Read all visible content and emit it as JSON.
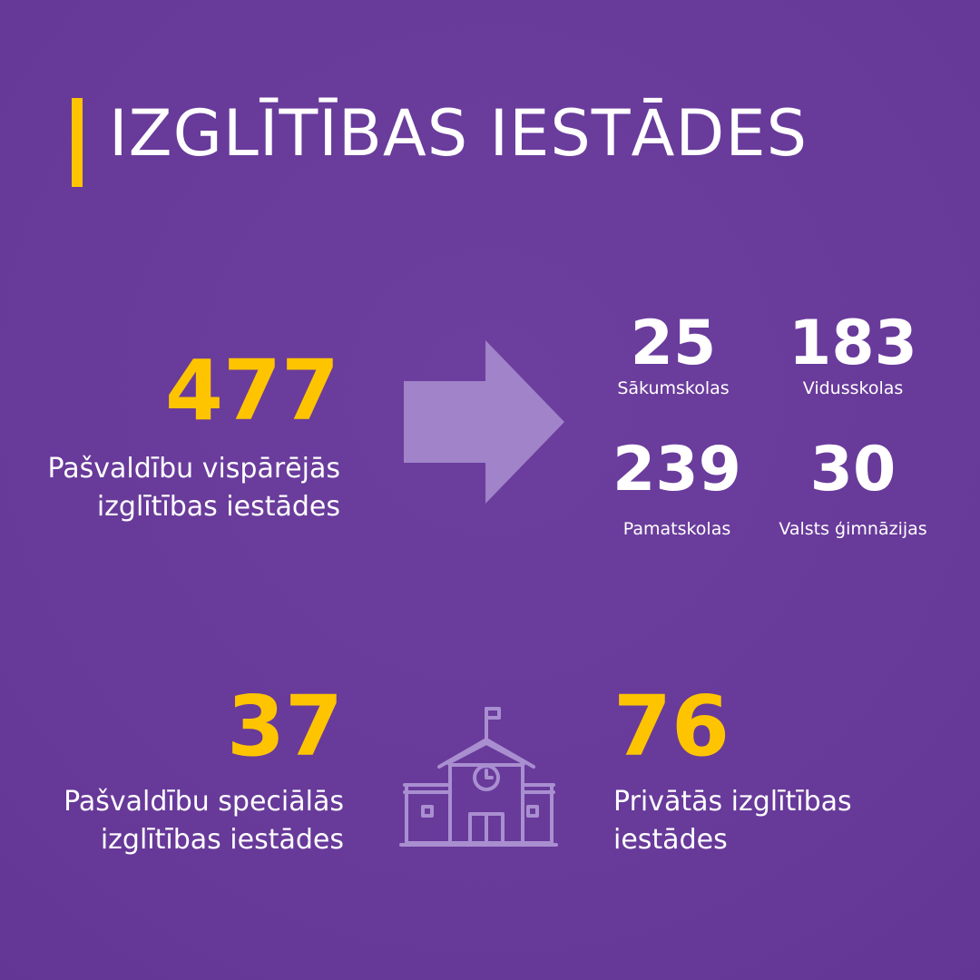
{
  "title": "IZGLĪTĪBAS IESTĀDES",
  "colors": {
    "background": "#6a3c9b",
    "accent": "#ffc400",
    "icon": "#a98fd0",
    "text": "#ffffff"
  },
  "municipal_general": {
    "value": "477",
    "line1": "Pašvaldību vispārējās",
    "line2": "izglītības iestādes"
  },
  "breakdown": [
    {
      "value": "25",
      "label": "Sākumskolas"
    },
    {
      "value": "183",
      "label": "Vidusskolas"
    },
    {
      "value": "239",
      "label": "Pamatskolas"
    },
    {
      "value": "30",
      "label": "Valsts ģimnāzijas"
    }
  ],
  "municipal_special": {
    "value": "37",
    "line1": "Pašvaldību speciālās",
    "line2": "izglītības iestādes"
  },
  "private": {
    "value": "76",
    "line1": "Privātās izglītības",
    "line2": "iestādes"
  },
  "icons": {
    "arrow": "arrow-right-icon",
    "school": "school-building-icon"
  }
}
